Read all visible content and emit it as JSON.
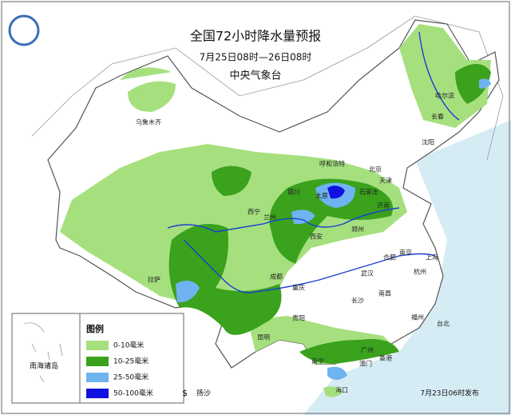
{
  "header": {
    "title": "全国72小时降水量预报",
    "subtitle": "7月25日08时—26日08时",
    "agency": "中央气象台"
  },
  "legend": {
    "title": "图例",
    "items": [
      {
        "label": "0-10毫米",
        "color": "#a6e07e"
      },
      {
        "label": "10-25毫米",
        "color": "#3aa21c"
      },
      {
        "label": "25-50毫米",
        "color": "#6fb3f0"
      },
      {
        "label": "50-100毫米",
        "color": "#1010e0"
      }
    ],
    "sand": "扬沙"
  },
  "cities": [
    "乌鲁木齐",
    "哈尔滨",
    "长春",
    "沈阳",
    "呼和浩特",
    "北京",
    "天津",
    "石家庄",
    "太原",
    "济南",
    "银川",
    "兰州",
    "西宁",
    "西安",
    "郑州",
    "合肥",
    "南京",
    "上海",
    "杭州",
    "武汉",
    "长沙",
    "南昌",
    "福州",
    "台北",
    "成都",
    "重庆",
    "贵阳",
    "昆明",
    "南宁",
    "广州",
    "香港",
    "澳门",
    "海口",
    "拉萨"
  ],
  "inset_label": "南海诸岛",
  "footer": "7月23日06时发布"
}
